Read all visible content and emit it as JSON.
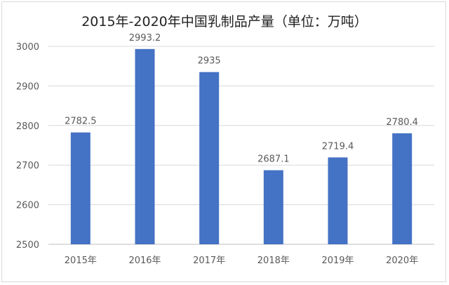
{
  "chart_data": {
    "type": "bar",
    "title": "2015年-2020年中国乳制品产量（单位：万吨）",
    "categories": [
      "2015年",
      "2016年",
      "2017年",
      "2018年",
      "2019年",
      "2020年"
    ],
    "values": [
      2782.5,
      2993.2,
      2935,
      2687.1,
      2719.4,
      2780.4
    ],
    "data_labels": [
      "2782.5",
      "2993.2",
      "2935",
      "2687.1",
      "2719.4",
      "2780.4"
    ],
    "ylim": [
      2500,
      3000
    ],
    "yticks": [
      "2500",
      "2600",
      "2700",
      "2800",
      "2900",
      "3000"
    ],
    "xlabel": "",
    "ylabel": "",
    "grid": true,
    "bar_color": "#4472C4"
  }
}
